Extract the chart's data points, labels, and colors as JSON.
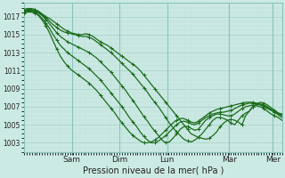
{
  "xlabel": "Pression niveau de la mer( hPa )",
  "ylim": [
    1002.0,
    1018.5
  ],
  "yticks": [
    1003,
    1005,
    1007,
    1009,
    1011,
    1013,
    1015,
    1017
  ],
  "xtick_labels": [
    "Sam",
    "Dim",
    "Lun",
    "Mar",
    "Mer"
  ],
  "xtick_positions": [
    0.185,
    0.37,
    0.555,
    0.795,
    0.965
  ],
  "bg_color": "#cceae4",
  "grid_major_color": "#aad4cc",
  "grid_minor_color": "#bbddd8",
  "line_color": "#1a6b1a",
  "line_width": 0.9,
  "marker": "+",
  "marker_size": 3.0,
  "marker_lw": 0.7,
  "series": [
    [
      1017.8,
      1017.9,
      1017.9,
      1017.8,
      1017.6,
      1017.3,
      1017.0,
      1016.8,
      1016.5,
      1016.2,
      1015.9,
      1015.6,
      1015.4,
      1015.2,
      1015.1,
      1015.0,
      1015.0,
      1015.1,
      1015.0,
      1014.8,
      1014.5,
      1014.2,
      1014.0,
      1013.8,
      1013.5,
      1013.2,
      1012.9,
      1012.6,
      1012.3,
      1012.0,
      1011.7,
      1011.4,
      1011.0,
      1010.5,
      1010.0,
      1009.5,
      1009.0,
      1008.5,
      1008.0,
      1007.5,
      1007.0,
      1006.5,
      1006.0,
      1005.5,
      1005.0,
      1004.5,
      1004.0,
      1003.8,
      1003.6,
      1003.5,
      1003.4,
      1003.5,
      1003.8,
      1004.2,
      1004.8,
      1005.2,
      1005.5,
      1005.6,
      1005.5,
      1005.3,
      1005.0,
      1006.0,
      1006.5,
      1007.0,
      1007.3,
      1007.5,
      1007.4,
      1007.2,
      1006.9,
      1006.6,
      1006.3,
      1006.2
    ],
    [
      1017.7,
      1017.8,
      1017.8,
      1017.7,
      1017.5,
      1017.2,
      1016.9,
      1016.5,
      1016.1,
      1015.8,
      1015.5,
      1015.3,
      1015.2,
      1015.1,
      1015.0,
      1014.9,
      1014.8,
      1014.8,
      1014.7,
      1014.5,
      1014.2,
      1013.9,
      1013.6,
      1013.3,
      1013.0,
      1012.6,
      1012.2,
      1011.8,
      1011.4,
      1011.0,
      1010.6,
      1010.1,
      1009.6,
      1009.1,
      1008.6,
      1008.0,
      1007.5,
      1007.0,
      1006.4,
      1005.8,
      1005.2,
      1004.7,
      1004.2,
      1003.8,
      1003.4,
      1003.2,
      1003.1,
      1003.3,
      1003.6,
      1004.0,
      1004.5,
      1005.0,
      1005.5,
      1005.8,
      1005.8,
      1005.7,
      1005.5,
      1005.2,
      1005.0,
      1005.5,
      1006.0,
      1006.3,
      1006.5,
      1007.0,
      1007.2,
      1007.3,
      1007.2,
      1007.0,
      1006.7,
      1006.4,
      1006.1,
      1005.8
    ],
    [
      1017.6,
      1017.7,
      1017.7,
      1017.6,
      1017.4,
      1017.1,
      1016.7,
      1016.2,
      1015.7,
      1015.2,
      1014.8,
      1014.5,
      1014.2,
      1014.0,
      1013.8,
      1013.6,
      1013.4,
      1013.2,
      1013.0,
      1012.7,
      1012.4,
      1012.0,
      1011.6,
      1011.2,
      1010.8,
      1010.3,
      1009.8,
      1009.3,
      1008.8,
      1008.2,
      1007.7,
      1007.1,
      1006.5,
      1005.9,
      1005.4,
      1004.8,
      1004.3,
      1003.8,
      1003.3,
      1003.0,
      1003.1,
      1003.5,
      1004.0,
      1004.5,
      1004.8,
      1004.8,
      1004.6,
      1004.4,
      1004.5,
      1005.0,
      1005.5,
      1005.8,
      1006.0,
      1006.2,
      1006.2,
      1006.1,
      1006.0,
      1006.0,
      1006.2,
      1006.5,
      1006.8,
      1007.0,
      1007.1,
      1007.2,
      1007.1,
      1007.0,
      1006.8,
      1006.5,
      1006.2,
      1006.0,
      1005.8,
      1005.5
    ],
    [
      1017.5,
      1017.6,
      1017.6,
      1017.5,
      1017.2,
      1016.8,
      1016.3,
      1015.7,
      1015.0,
      1014.4,
      1013.8,
      1013.4,
      1013.0,
      1012.7,
      1012.4,
      1012.1,
      1011.8,
      1011.5,
      1011.2,
      1010.8,
      1010.4,
      1010.0,
      1009.5,
      1009.0,
      1008.5,
      1008.0,
      1007.5,
      1007.0,
      1006.4,
      1005.8,
      1005.3,
      1004.8,
      1004.2,
      1003.7,
      1003.3,
      1003.0,
      1003.0,
      1003.2,
      1003.5,
      1003.8,
      1004.2,
      1004.6,
      1005.0,
      1005.3,
      1005.4,
      1005.3,
      1005.1,
      1005.0,
      1005.2,
      1005.5,
      1005.8,
      1006.0,
      1006.2,
      1006.3,
      1006.4,
      1006.4,
      1006.5,
      1006.6,
      1006.8,
      1007.0,
      1007.2,
      1007.3,
      1007.4,
      1007.4,
      1007.3,
      1007.2,
      1007.0,
      1006.8,
      1006.6,
      1006.4,
      1006.2,
      1006.0
    ],
    [
      1017.4,
      1017.5,
      1017.5,
      1017.4,
      1017.1,
      1016.6,
      1016.0,
      1015.2,
      1014.3,
      1013.4,
      1012.6,
      1012.0,
      1011.5,
      1011.1,
      1010.8,
      1010.5,
      1010.2,
      1009.9,
      1009.6,
      1009.2,
      1008.8,
      1008.3,
      1007.8,
      1007.3,
      1006.8,
      1006.3,
      1005.7,
      1005.2,
      1004.7,
      1004.2,
      1003.8,
      1003.5,
      1003.2,
      1003.0,
      1003.0,
      1003.1,
      1003.3,
      1003.6,
      1004.0,
      1004.4,
      1004.8,
      1005.2,
      1005.5,
      1005.7,
      1005.7,
      1005.5,
      1005.3,
      1005.2,
      1005.4,
      1005.7,
      1006.0,
      1006.3,
      1006.5,
      1006.7,
      1006.8,
      1006.9,
      1007.0,
      1007.1,
      1007.2,
      1007.3,
      1007.4,
      1007.5,
      1007.5,
      1007.5,
      1007.4,
      1007.3,
      1007.1,
      1006.9,
      1006.7,
      1006.5,
      1006.3,
      1006.1
    ]
  ]
}
